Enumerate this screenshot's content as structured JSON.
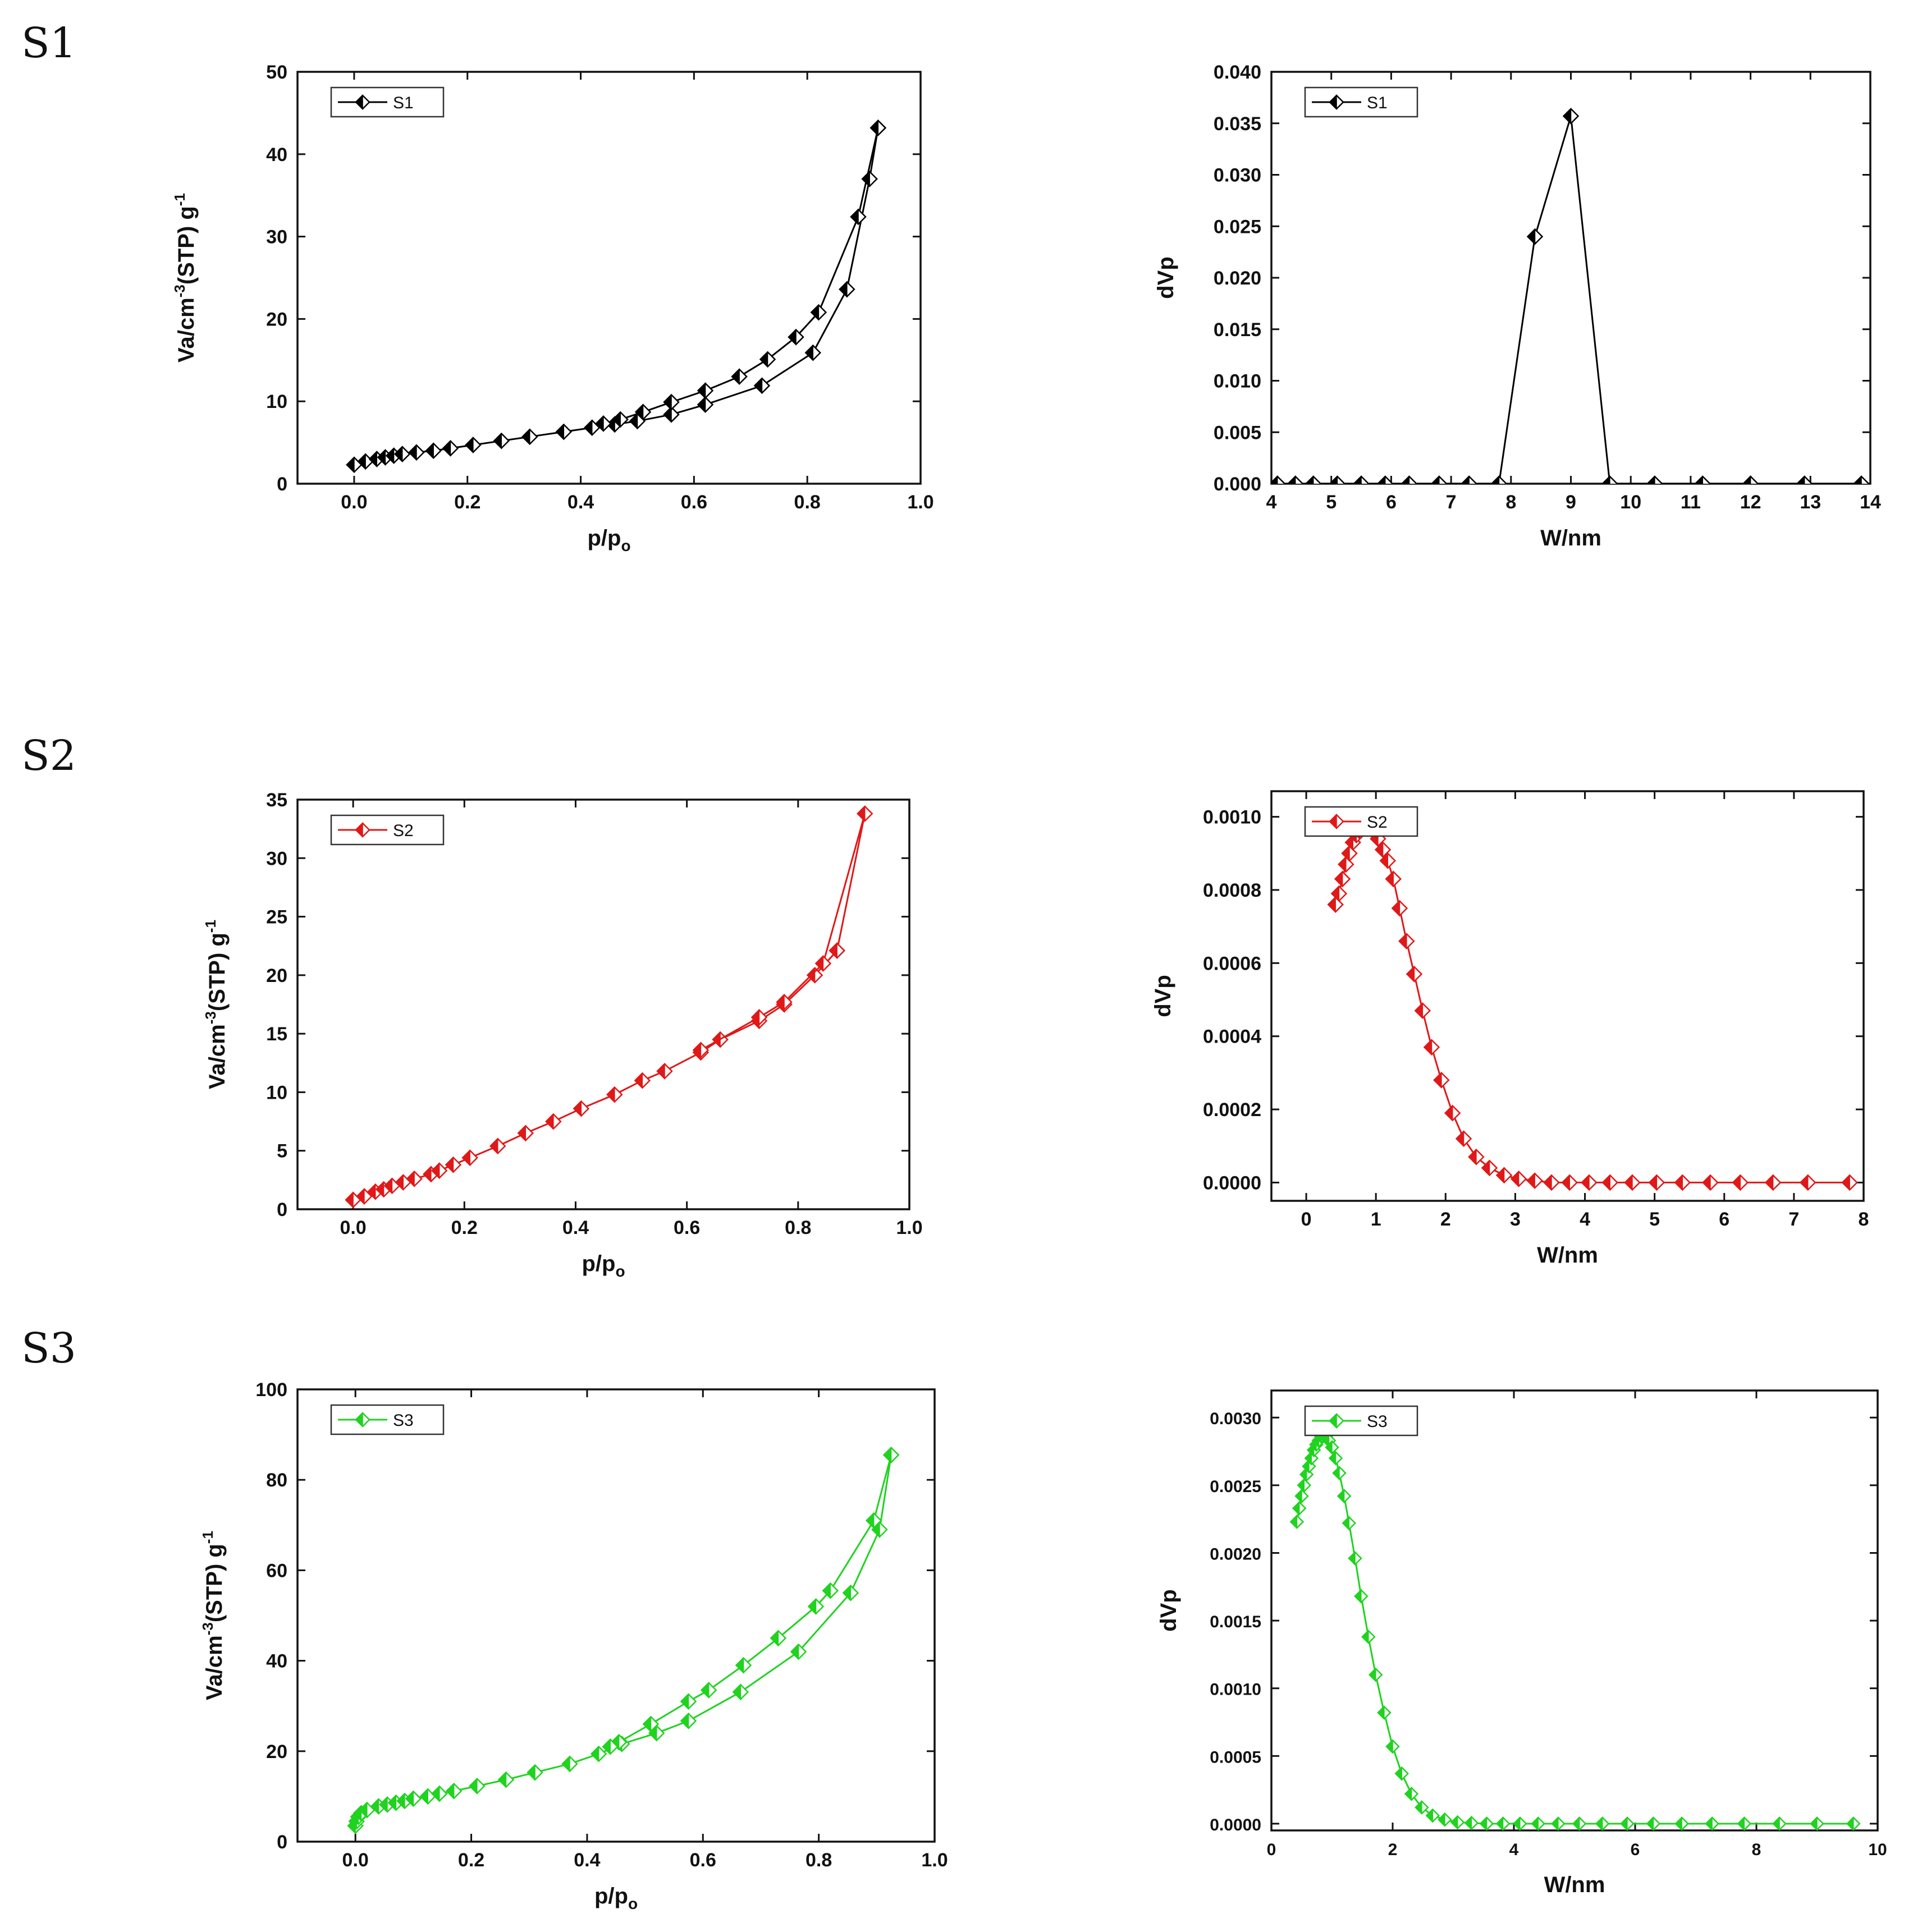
{
  "row_labels": [
    "S1",
    "S2",
    "S3"
  ],
  "chart_data": [
    {
      "id": "s1-isotherm",
      "type": "line",
      "row": 0,
      "col": 0,
      "xlabel": "p/p",
      "xlabel_sub": "o",
      "ylabel": "Va/cm",
      "ylabel_sup": "-3",
      "ylabel_mid": "(STP) g",
      "ylabel_sup2": "-1",
      "xlim": [
        -0.1,
        1.0
      ],
      "ylim": [
        0,
        50
      ],
      "xticks": [
        0.0,
        0.2,
        0.4,
        0.6,
        0.8,
        1.0
      ],
      "xtick_labels": [
        "0.0",
        "0.2",
        "0.4",
        "0.6",
        "0.8",
        "1.0"
      ],
      "yticks": [
        0,
        10,
        20,
        30,
        40,
        50
      ],
      "ytick_labels": [
        "0",
        "10",
        "20",
        "30",
        "40",
        "50"
      ],
      "legend": "S1",
      "color": "#000000",
      "marker": "diamond",
      "series": [
        {
          "name": "adsorption",
          "x": [
            0.0,
            0.02,
            0.04,
            0.055,
            0.07,
            0.085,
            0.11,
            0.14,
            0.17,
            0.21,
            0.26,
            0.31,
            0.37,
            0.42,
            0.46,
            0.5,
            0.56,
            0.62,
            0.72,
            0.81,
            0.87,
            0.91,
            0.925
          ],
          "y": [
            2.3,
            2.7,
            3.0,
            3.2,
            3.4,
            3.6,
            3.8,
            4.0,
            4.3,
            4.7,
            5.2,
            5.7,
            6.3,
            6.8,
            7.2,
            7.6,
            8.4,
            9.6,
            11.9,
            15.9,
            23.6,
            37.0,
            43.2
          ]
        },
        {
          "name": "desorption",
          "x": [
            0.925,
            0.89,
            0.82,
            0.78,
            0.73,
            0.68,
            0.62,
            0.56,
            0.51,
            0.47,
            0.44
          ],
          "y": [
            43.2,
            32.4,
            20.8,
            17.8,
            15.1,
            13.0,
            11.3,
            9.9,
            8.7,
            7.8,
            7.3
          ]
        }
      ]
    },
    {
      "id": "s1-pore",
      "type": "line",
      "row": 0,
      "col": 1,
      "xlabel": "W/nm",
      "ylabel": "dVp",
      "xlim": [
        4,
        14
      ],
      "ylim": [
        0,
        0.04
      ],
      "xticks": [
        4,
        5,
        6,
        7,
        8,
        9,
        10,
        11,
        12,
        13,
        14
      ],
      "xtick_labels": [
        "4",
        "5",
        "6",
        "7",
        "8",
        "9",
        "10",
        "11",
        "12",
        "13",
        "14"
      ],
      "yticks": [
        0,
        0.005,
        0.01,
        0.015,
        0.02,
        0.025,
        0.03,
        0.035,
        0.04
      ],
      "ytick_labels": [
        "0.000",
        "0.005",
        "0.010",
        "0.015",
        "0.020",
        "0.025",
        "0.030",
        "0.035",
        "0.040"
      ],
      "legend": "S1",
      "color": "#000000",
      "marker": "diamond",
      "series": [
        {
          "name": "S1",
          "x": [
            4.1,
            4.4,
            4.7,
            5.1,
            5.5,
            5.9,
            6.3,
            6.8,
            7.3,
            7.8,
            8.4,
            9.0,
            9.65,
            10.4,
            11.2,
            12.0,
            12.9,
            13.85
          ],
          "y": [
            0,
            0,
            0,
            0,
            0,
            0,
            0,
            0,
            0,
            0,
            0.024,
            0.0357,
            0,
            0,
            0,
            0,
            0,
            0
          ]
        }
      ]
    },
    {
      "id": "s2-isotherm",
      "type": "line",
      "row": 1,
      "col": 0,
      "xlabel": "p/p",
      "xlabel_sub": "o",
      "ylabel": "Va/cm",
      "ylabel_sup": "-3",
      "ylabel_mid": "(STP) g",
      "ylabel_sup2": "-1",
      "xlim": [
        -0.1,
        1.0
      ],
      "ylim": [
        0,
        35
      ],
      "xticks": [
        0.0,
        0.2,
        0.4,
        0.6,
        0.8,
        1.0
      ],
      "xtick_labels": [
        "0.0",
        "0.2",
        "0.4",
        "0.6",
        "0.8",
        "1.0"
      ],
      "yticks": [
        0,
        5,
        10,
        15,
        20,
        25,
        30,
        35
      ],
      "ytick_labels": [
        "0",
        "5",
        "10",
        "15",
        "20",
        "25",
        "30",
        "35"
      ],
      "legend": "S2",
      "color": "#e01818",
      "marker": "diamond",
      "series": [
        {
          "name": "adsorption",
          "x": [
            0.0,
            0.02,
            0.04,
            0.055,
            0.07,
            0.09,
            0.11,
            0.14,
            0.155,
            0.18,
            0.21,
            0.26,
            0.31,
            0.36,
            0.41,
            0.47,
            0.52,
            0.56,
            0.625,
            0.66,
            0.73,
            0.775,
            0.83,
            0.87
          ],
          "y": [
            0.8,
            1.1,
            1.5,
            1.7,
            2.0,
            2.3,
            2.6,
            3.0,
            3.3,
            3.8,
            4.4,
            5.4,
            6.5,
            7.5,
            8.6,
            9.8,
            11.0,
            11.8,
            13.4,
            14.5,
            16.1,
            17.5,
            20.0,
            22.1
          ]
        },
        {
          "name": "desorption",
          "x": [
            0.87,
            0.92,
            0.845,
            0.775,
            0.73,
            0.625
          ],
          "y": [
            22.1,
            33.8,
            21.0,
            17.7,
            16.4,
            13.6
          ]
        }
      ]
    },
    {
      "id": "s2-pore",
      "type": "line",
      "row": 1,
      "col": 1,
      "xlabel": "W/nm",
      "ylabel": "dVp",
      "xlim": [
        -0.5,
        8
      ],
      "ylim": [
        -5e-05,
        0.00107
      ],
      "xticks": [
        0,
        1,
        2,
        3,
        4,
        5,
        6,
        7,
        8
      ],
      "xtick_labels": [
        "0",
        "1",
        "2",
        "3",
        "4",
        "5",
        "6",
        "7",
        "8"
      ],
      "yticks": [
        0,
        0.0002,
        0.0004,
        0.0006,
        0.0008,
        0.001
      ],
      "ytick_labels": [
        "0.0000",
        "0.0002",
        "0.0004",
        "0.0006",
        "0.0008",
        "0.0010"
      ],
      "legend": "S2",
      "color": "#e01818",
      "marker": "diamond",
      "series": [
        {
          "name": "S2",
          "x": [
            0.42,
            0.47,
            0.52,
            0.57,
            0.62,
            0.67,
            0.72,
            0.77,
            0.82,
            0.87,
            0.92,
            0.97,
            1.03,
            1.1,
            1.17,
            1.25,
            1.34,
            1.44,
            1.55,
            1.67,
            1.8,
            1.94,
            2.1,
            2.26,
            2.44,
            2.63,
            2.84,
            3.05,
            3.28,
            3.52,
            3.78,
            4.06,
            4.36,
            4.68,
            5.03,
            5.4,
            5.8,
            6.23,
            6.7,
            7.2,
            7.8
          ],
          "y": [
            0.00076,
            0.00079,
            0.00083,
            0.00087,
            0.0009,
            0.00093,
            0.00095,
            0.00096,
            0.00097,
            0.00097,
            0.00097,
            0.00096,
            0.00094,
            0.00091,
            0.00088,
            0.00083,
            0.00075,
            0.00066,
            0.00057,
            0.00047,
            0.00037,
            0.00028,
            0.00019,
            0.00012,
            7e-05,
            4e-05,
            2e-05,
            1e-05,
            5e-06,
            0,
            0,
            0,
            0,
            0,
            0,
            0,
            0,
            0,
            0,
            0,
            0
          ]
        }
      ]
    },
    {
      "id": "s3-isotherm",
      "type": "line",
      "row": 2,
      "col": 0,
      "xlabel": "p/p",
      "xlabel_sub": "o",
      "ylabel": "Va/cm",
      "ylabel_sup": "-3",
      "ylabel_mid": "(STP) g",
      "ylabel_sup2": "-1",
      "xlim": [
        -0.1,
        1.0
      ],
      "ylim": [
        0,
        100
      ],
      "xticks": [
        0.0,
        0.2,
        0.4,
        0.6,
        0.8,
        1.0
      ],
      "xtick_labels": [
        "0.0",
        "0.2",
        "0.4",
        "0.6",
        "0.8",
        "1.0"
      ],
      "yticks": [
        0,
        20,
        40,
        60,
        80,
        100
      ],
      "ytick_labels": [
        "0",
        "20",
        "40",
        "60",
        "80",
        "100"
      ],
      "legend": "S3",
      "color": "#1fd31f",
      "marker": "diamond",
      "series": [
        {
          "name": "adsorption",
          "x": [
            0.0,
            0.002,
            0.005,
            0.01,
            0.02,
            0.04,
            0.055,
            0.07,
            0.085,
            0.1,
            0.125,
            0.145,
            0.17,
            0.21,
            0.26,
            0.31,
            0.37,
            0.42,
            0.46,
            0.52,
            0.575,
            0.665,
            0.765,
            0.855,
            0.905,
            0.925
          ],
          "y": [
            3.5,
            4.5,
            5.5,
            6.3,
            7.0,
            7.8,
            8.2,
            8.6,
            9.0,
            9.5,
            10.0,
            10.6,
            11.2,
            12.3,
            13.7,
            15.3,
            17.2,
            19.4,
            21.6,
            24.0,
            26.7,
            33.1,
            42.0,
            55.0,
            69.0,
            85.5
          ]
        },
        {
          "name": "desorption",
          "x": [
            0.925,
            0.895,
            0.82,
            0.795,
            0.73,
            0.67,
            0.61,
            0.575,
            0.51,
            0.455,
            0.44
          ],
          "y": [
            85.5,
            71.0,
            55.5,
            52.0,
            45.0,
            39.0,
            33.5,
            31.0,
            26.0,
            22.0,
            21.0
          ]
        }
      ]
    },
    {
      "id": "s3-pore",
      "type": "line",
      "row": 2,
      "col": 1,
      "xlabel": "W/nm",
      "ylabel": "dVp",
      "xlim": [
        0,
        10
      ],
      "ylim": [
        -5e-05,
        0.0032
      ],
      "xticks": [
        0,
        2,
        4,
        6,
        8,
        10
      ],
      "xtick_labels": [
        "0",
        "2",
        "4",
        "6",
        "8",
        "10"
      ],
      "yticks": [
        0,
        0.0005,
        0.001,
        0.0015,
        0.002,
        0.0025,
        0.003
      ],
      "ytick_labels": [
        "0.0000",
        "0.0005",
        "0.0010",
        "0.0015",
        "0.0020",
        "0.0025",
        "0.0030"
      ],
      "legend": "S3",
      "color": "#1fd31f",
      "marker": "diamond",
      "series": [
        {
          "name": "S3",
          "x": [
            0.42,
            0.46,
            0.5,
            0.54,
            0.58,
            0.62,
            0.66,
            0.7,
            0.74,
            0.78,
            0.82,
            0.86,
            0.9,
            0.95,
            1.0,
            1.06,
            1.12,
            1.2,
            1.28,
            1.38,
            1.48,
            1.6,
            1.72,
            1.86,
            2.0,
            2.15,
            2.31,
            2.48,
            2.66,
            2.86,
            3.07,
            3.3,
            3.55,
            3.82,
            4.1,
            4.4,
            4.73,
            5.08,
            5.46,
            5.87,
            6.3,
            6.77,
            7.27,
            7.8,
            8.38,
            9.0,
            9.6
          ],
          "y": [
            0.00223,
            0.00233,
            0.00242,
            0.0025,
            0.00258,
            0.00264,
            0.0027,
            0.00276,
            0.0028,
            0.00283,
            0.00286,
            0.00287,
            0.00286,
            0.00283,
            0.00278,
            0.0027,
            0.00259,
            0.00242,
            0.00222,
            0.00196,
            0.00168,
            0.00138,
            0.0011,
            0.00082,
            0.00057,
            0.00037,
            0.00022,
            0.00012,
            6e-05,
            3e-05,
            1e-05,
            5e-06,
            0,
            0,
            0,
            0,
            0,
            0,
            0,
            0,
            0,
            0,
            0,
            0,
            0,
            0,
            0
          ]
        }
      ]
    }
  ]
}
